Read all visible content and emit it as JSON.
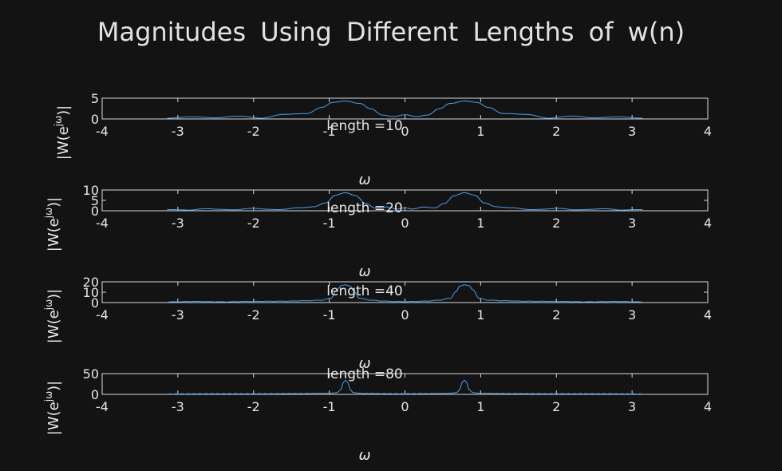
{
  "figure": {
    "title": "Magnitudes Using Different Lengths of w(n)",
    "series_color": "#4a9fe8",
    "background": "#131313"
  },
  "chart_data": [
    {
      "type": "line",
      "title": "length =10",
      "xlabel": "ω",
      "ylabel": "|W(e^{jω})|",
      "xlim": [
        -4,
        4
      ],
      "ylim": [
        0,
        5
      ],
      "xticks": [
        "-4",
        "-3",
        "-2",
        "-1",
        "0",
        "1",
        "2",
        "3",
        "4"
      ],
      "yticks": [
        "0",
        "5"
      ],
      "window_length": 10,
      "peak_positions": [
        -0.785,
        0.785
      ],
      "x": [
        -3.14,
        -2.8,
        -2.5,
        -2.2,
        -1.9,
        -1.6,
        -1.3,
        -1.1,
        -0.95,
        -0.785,
        -0.6,
        -0.45,
        -0.3,
        -0.15,
        0,
        0.15,
        0.3,
        0.45,
        0.6,
        0.785,
        0.95,
        1.1,
        1.3,
        1.6,
        1.9,
        2.2,
        2.5,
        2.8,
        3.14
      ],
      "y": [
        0.2,
        0.5,
        0.3,
        0.7,
        0.2,
        1.2,
        1.5,
        3.2,
        4.6,
        5.0,
        4.4,
        2.8,
        1.0,
        0.6,
        1.2,
        0.6,
        1.0,
        2.8,
        4.4,
        5.0,
        4.6,
        3.2,
        1.5,
        1.2,
        0.2,
        0.7,
        0.3,
        0.5,
        0.2
      ]
    },
    {
      "type": "line",
      "title": "length =20",
      "xlabel": "ω",
      "ylabel": "|W(e^{jω})|",
      "xlim": [
        -4,
        4
      ],
      "ylim": [
        0,
        10
      ],
      "xticks": [
        "-4",
        "-3",
        "-2",
        "-1",
        "0",
        "1",
        "2",
        "3",
        "4"
      ],
      "yticks": [
        "0",
        "5",
        "10"
      ],
      "window_length": 20,
      "peak_positions": [
        -0.785,
        0.785
      ],
      "x": [
        -3.14,
        -2.9,
        -2.6,
        -2.3,
        -2.0,
        -1.7,
        -1.4,
        -1.2,
        -1.05,
        -0.92,
        -0.785,
        -0.65,
        -0.52,
        -0.4,
        -0.25,
        -0.1,
        0,
        0.1,
        0.25,
        0.4,
        0.52,
        0.65,
        0.785,
        0.92,
        1.05,
        1.2,
        1.4,
        1.7,
        2.0,
        2.3,
        2.6,
        2.9,
        3.14
      ],
      "y": [
        0.6,
        0.3,
        1.0,
        0.4,
        1.2,
        0.5,
        1.5,
        2.2,
        4.2,
        8.8,
        10.0,
        8.5,
        4.0,
        1.5,
        2.0,
        0.8,
        1.6,
        0.8,
        2.0,
        1.5,
        4.0,
        8.5,
        10.0,
        8.8,
        4.2,
        2.2,
        1.5,
        0.5,
        1.2,
        0.4,
        1.0,
        0.3,
        0.6
      ]
    },
    {
      "type": "line",
      "title": "length =40",
      "xlabel": "ω",
      "ylabel": "|W(e^{jω})|",
      "xlim": [
        -4,
        4
      ],
      "ylim": [
        0,
        20
      ],
      "xticks": [
        "-4",
        "-3",
        "-2",
        "-1",
        "0",
        "1",
        "2",
        "3",
        "4"
      ],
      "yticks": [
        "0",
        "10",
        "20"
      ],
      "window_length": 40,
      "peak_positions": [
        -0.785,
        0.785
      ],
      "x": [
        -3.14,
        -2.8,
        -2.4,
        -2.0,
        -1.6,
        -1.3,
        -1.1,
        -0.98,
        -0.9,
        -0.84,
        -0.785,
        -0.73,
        -0.67,
        -0.6,
        -0.45,
        -0.3,
        -0.15,
        0,
        0.15,
        0.3,
        0.45,
        0.6,
        0.67,
        0.73,
        0.785,
        0.84,
        0.9,
        0.98,
        1.1,
        1.3,
        1.6,
        2.0,
        2.4,
        2.8,
        3.14
      ],
      "y": [
        0.5,
        1.0,
        0.6,
        1.1,
        1.3,
        1.8,
        2.5,
        4.5,
        14.0,
        19.0,
        20.0,
        18.5,
        12.0,
        4.5,
        2.5,
        1.5,
        1.0,
        0.8,
        1.0,
        1.5,
        2.5,
        4.5,
        12.0,
        18.5,
        20.0,
        19.0,
        14.0,
        4.5,
        2.5,
        1.8,
        1.3,
        1.1,
        0.6,
        1.0,
        0.5
      ]
    },
    {
      "type": "line",
      "title": "length =80",
      "xlabel": "ω",
      "ylabel": "|W(e^{jω})|",
      "xlim": [
        -4,
        4
      ],
      "ylim": [
        0,
        50
      ],
      "xticks": [
        "-4",
        "-3",
        "-2",
        "-1",
        "0",
        "1",
        "2",
        "3",
        "4"
      ],
      "yticks": [
        "0",
        "50"
      ],
      "window_length": 80,
      "peak_positions": [
        -0.785,
        0.785
      ],
      "x": [
        -3.14,
        -2.6,
        -2.0,
        -1.4,
        -1.0,
        -0.9,
        -0.85,
        -0.81,
        -0.785,
        -0.76,
        -0.72,
        -0.68,
        -0.55,
        -0.3,
        0,
        0.3,
        0.55,
        0.68,
        0.72,
        0.76,
        0.785,
        0.81,
        0.85,
        0.9,
        1.0,
        1.4,
        2.0,
        2.6,
        3.14
      ],
      "y": [
        0.5,
        1.0,
        1.0,
        1.5,
        2.5,
        4.0,
        12.0,
        34.0,
        40.0,
        34.0,
        12.0,
        4.0,
        2.0,
        1.5,
        1.0,
        1.5,
        2.0,
        4.0,
        12.0,
        34.0,
        40.0,
        34.0,
        12.0,
        4.0,
        2.5,
        1.5,
        1.0,
        1.0,
        0.5
      ]
    }
  ]
}
